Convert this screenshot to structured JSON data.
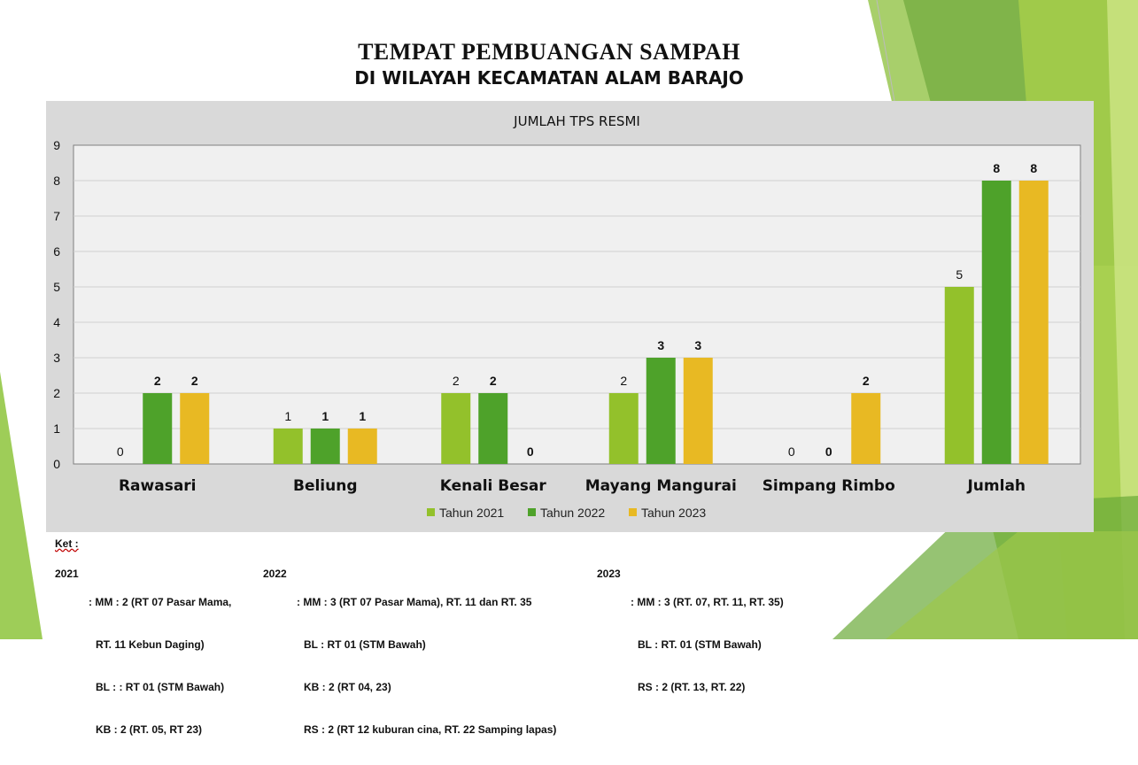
{
  "title": {
    "line1": "TEMPAT PEMBUANGAN SAMPAH",
    "line2": "DI WILAYAH KECAMATAN ALAM BARAJO"
  },
  "colors": {
    "tahun_2021": "#93c12b",
    "tahun_2022": "#4ea22a",
    "tahun_2023": "#e8b923",
    "chart_bg": "#d9d9d9",
    "plot_bg": "#f0f0f0"
  },
  "chart_data": {
    "type": "bar",
    "title": "JUMLAH TPS RESMI",
    "categories": [
      "Rawasari",
      "Beliung",
      "Kenali Besar",
      "Mayang Mangurai",
      "Simpang Rimbo",
      "Jumlah"
    ],
    "series": [
      {
        "name": "Tahun 2021",
        "values": [
          0,
          1,
          2,
          2,
          0,
          5
        ],
        "labels": [
          "0",
          "1",
          "2",
          "2",
          "0",
          "5"
        ]
      },
      {
        "name": "Tahun 2022",
        "values": [
          2,
          1,
          2,
          3,
          0,
          8
        ],
        "labels": [
          "2",
          "1",
          "2",
          "3",
          "0",
          "8"
        ]
      },
      {
        "name": "Tahun 2023",
        "values": [
          2,
          1,
          0,
          3,
          2,
          8
        ],
        "labels": [
          "2",
          "1",
          "0",
          "3",
          "2",
          "8"
        ]
      }
    ],
    "ylim": [
      0,
      9
    ],
    "yticks": [
      "0",
      "1",
      "2",
      "3",
      "4",
      "5",
      "6",
      "7",
      "8",
      "9"
    ],
    "grid": true,
    "legend": "bottom"
  },
  "notes": {
    "label": "Ket :",
    "blocks": [
      {
        "year": "2021",
        "lines": [
          ": MM : 2 (RT 07 Pasar Mama,",
          "RT. 11 Kebun Daging)",
          "BL : : RT 01 (STM Bawah)",
          "KB : 2 (RT. 05, RT 23)"
        ]
      },
      {
        "year": "2022",
        "lines": [
          ": MM : 3 (RT 07 Pasar Mama), RT. 11 dan RT. 35",
          "BL : RT 01 (STM Bawah)",
          "KB : 2 (RT 04, 23)",
          "RS : 2 (RT 12 kuburan cina, RT. 22 Samping lapas)"
        ]
      },
      {
        "year": "2023",
        "lines": [
          ": MM : 3 (RT. 07, RT. 11, RT. 35)",
          "BL : RT. 01 (STM Bawah)",
          "RS : 2 (RT. 13, RT. 22)"
        ]
      }
    ]
  }
}
